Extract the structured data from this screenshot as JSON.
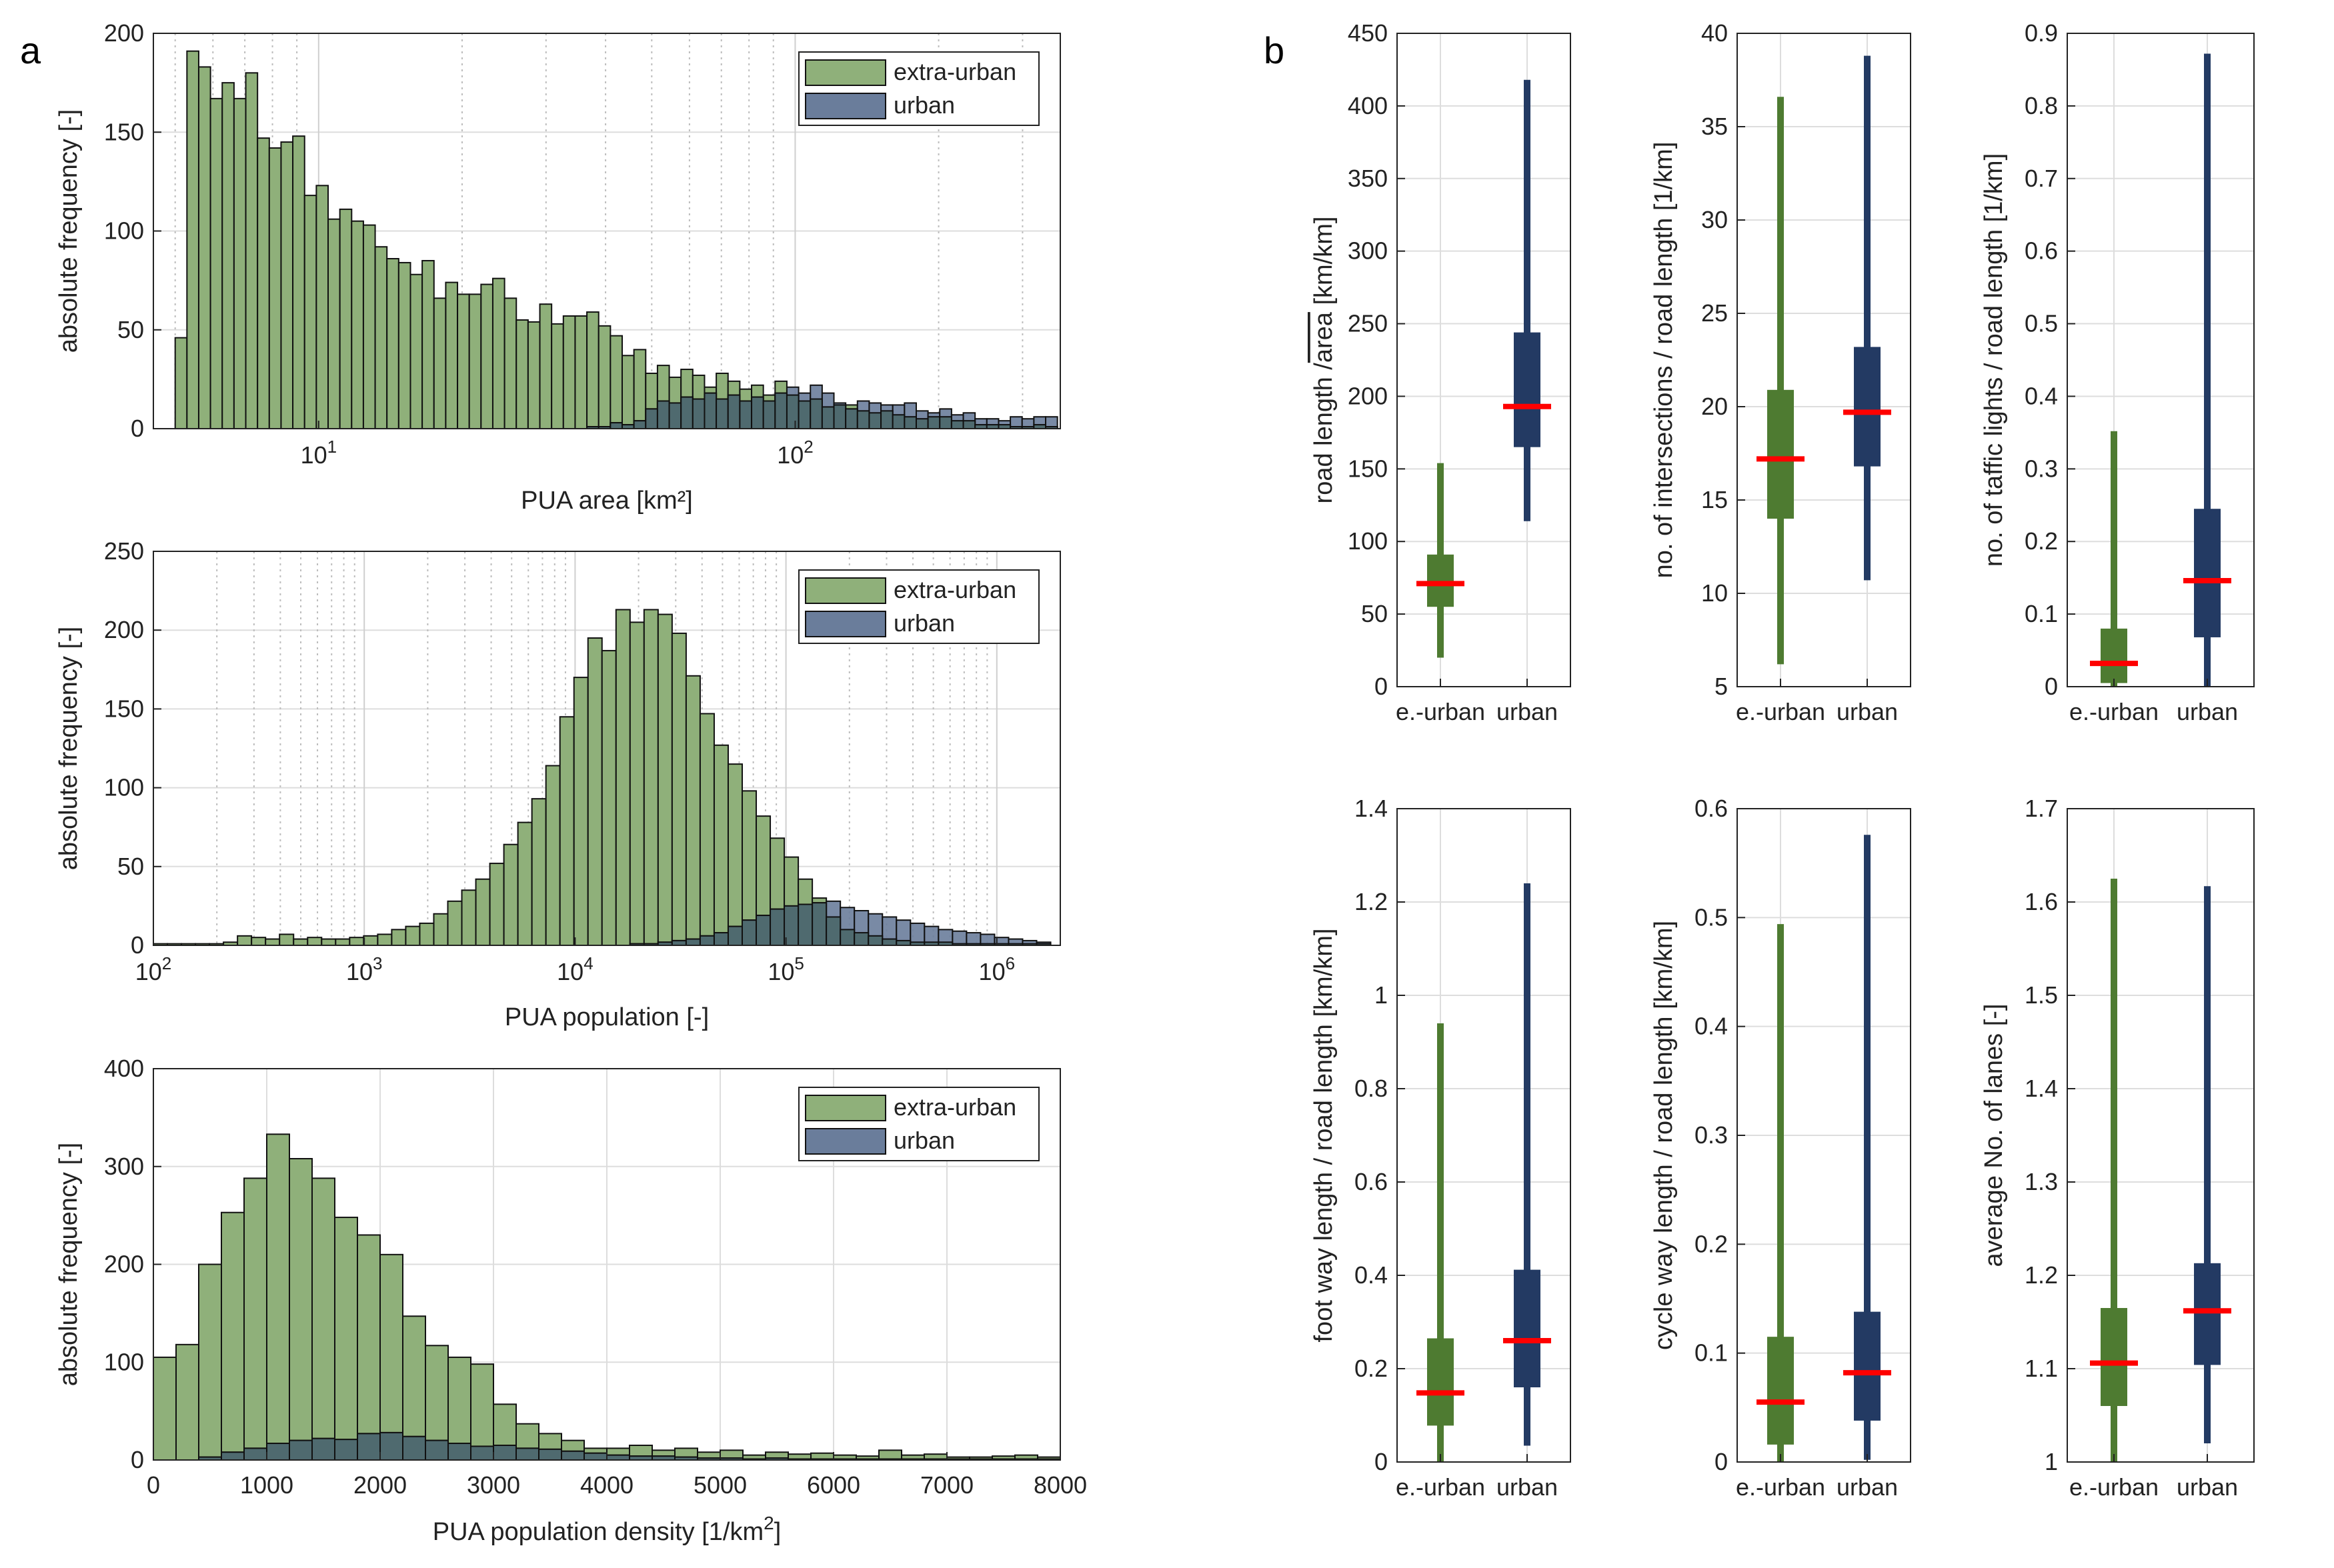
{
  "panel_labels": {
    "a": "a",
    "b": "b"
  },
  "colors": {
    "extra_urban": "#8fb07a",
    "urban": "#6a7d9b",
    "overlap": "#4f6a6f",
    "box_extra": "#4e7b31",
    "box_urban": "#233a63",
    "median": "#ff0000"
  },
  "chart_data": [
    {
      "id": "hist-area",
      "type": "bar",
      "xscale": "log",
      "xlim": [
        4.5,
        360
      ],
      "ylim": [
        0,
        200
      ],
      "xlabel": "PUA area [km²]",
      "ylabel": "absolute frequency [-]",
      "xticks": [
        {
          "v": 10,
          "base": "10",
          "exp": "1"
        },
        {
          "v": 100,
          "base": "10",
          "exp": "2"
        }
      ],
      "yticks": [
        0,
        50,
        100,
        150,
        200
      ],
      "legend": {
        "position": "top-right",
        "entries": [
          "extra-urban",
          "urban"
        ]
      },
      "bin_range": [
        5,
        355
      ],
      "series": [
        {
          "name": "extra-urban",
          "values": [
            46,
            191,
            183,
            167,
            175,
            167,
            180,
            147,
            142,
            145,
            148,
            118,
            123,
            106,
            111,
            105,
            103,
            92,
            86,
            84,
            78,
            85,
            66,
            74,
            68,
            68,
            73,
            76,
            66,
            55,
            54,
            63,
            53,
            57,
            57,
            59,
            52,
            47,
            37,
            40,
            28,
            32,
            26,
            30,
            27,
            21,
            28,
            24,
            20,
            22,
            17,
            24,
            17,
            14,
            15,
            11,
            12,
            12,
            9,
            8,
            9,
            7,
            6,
            5,
            6,
            6,
            4,
            4,
            2,
            2,
            2,
            1,
            1,
            2,
            1
          ]
        },
        {
          "name": "urban",
          "values": [
            0,
            0,
            0,
            0,
            0,
            0,
            0,
            0,
            0,
            0,
            0,
            0,
            0,
            0,
            0,
            0,
            0,
            0,
            0,
            0,
            0,
            0,
            0,
            0,
            0,
            0,
            0,
            0,
            0,
            0,
            0,
            0,
            0,
            0,
            0,
            1,
            1,
            3,
            2,
            4,
            10,
            14,
            13,
            16,
            15,
            18,
            15,
            17,
            14,
            16,
            14,
            18,
            21,
            18,
            22,
            18,
            13,
            10,
            14,
            13,
            12,
            12,
            13,
            9,
            8,
            10,
            7,
            8,
            5,
            5,
            4,
            6,
            5,
            6,
            6
          ]
        }
      ]
    },
    {
      "id": "hist-pop",
      "type": "bar",
      "xscale": "log",
      "xlim": [
        100,
        2000000
      ],
      "ylim": [
        0,
        250
      ],
      "xlabel": "PUA population [-]",
      "ylabel": "absolute frequency [-]",
      "xticks": [
        {
          "v": 100,
          "base": "10",
          "exp": "2"
        },
        {
          "v": 1000,
          "base": "10",
          "exp": "3"
        },
        {
          "v": 10000,
          "base": "10",
          "exp": "4"
        },
        {
          "v": 100000,
          "base": "10",
          "exp": "5"
        },
        {
          "v": 1000000,
          "base": "10",
          "exp": "6"
        }
      ],
      "yticks": [
        0,
        50,
        100,
        150,
        200,
        250
      ],
      "legend": {
        "position": "top-right",
        "entries": [
          "extra-urban",
          "urban"
        ]
      },
      "bin_range": [
        100,
        1800000
      ],
      "series": [
        {
          "name": "extra-urban",
          "values": [
            1,
            1,
            1,
            1,
            1,
            2,
            6,
            5,
            4,
            7,
            4,
            5,
            4,
            4,
            5,
            6,
            7,
            10,
            12,
            14,
            20,
            28,
            35,
            42,
            52,
            64,
            78,
            93,
            114,
            145,
            170,
            195,
            187,
            213,
            205,
            213,
            210,
            198,
            171,
            147,
            127,
            115,
            98,
            82,
            68,
            56,
            42,
            30,
            18,
            10,
            8,
            6,
            4,
            3,
            2,
            2,
            2,
            1,
            1,
            1,
            1,
            1,
            1,
            1
          ]
        },
        {
          "name": "urban",
          "values": [
            0,
            0,
            0,
            0,
            0,
            0,
            0,
            0,
            0,
            0,
            0,
            0,
            0,
            0,
            0,
            0,
            0,
            0,
            0,
            0,
            0,
            0,
            0,
            0,
            0,
            0,
            0,
            0,
            0,
            0,
            0,
            0,
            0,
            0,
            1,
            1,
            2,
            3,
            4,
            6,
            8,
            12,
            16,
            19,
            23,
            25,
            26,
            27,
            28,
            24,
            22,
            20,
            18,
            16,
            14,
            12,
            10,
            9,
            8,
            7,
            5,
            4,
            3,
            2
          ]
        }
      ]
    },
    {
      "id": "hist-dens",
      "type": "bar",
      "xscale": "linear",
      "xlim": [
        0,
        8000
      ],
      "ylim": [
        0,
        400
      ],
      "xlabel": "PUA population density [1/km",
      "xlabel_sup": "2",
      "xlabel_end": "]",
      "ylabel": "absolute frequency [-]",
      "xticks": [
        {
          "v": 0,
          "t": "0"
        },
        {
          "v": 1000,
          "t": "1000"
        },
        {
          "v": 2000,
          "t": "2000"
        },
        {
          "v": 3000,
          "t": "3000"
        },
        {
          "v": 4000,
          "t": "4000"
        },
        {
          "v": 5000,
          "t": "5000"
        },
        {
          "v": 6000,
          "t": "6000"
        },
        {
          "v": 7000,
          "t": "7000"
        },
        {
          "v": 8000,
          "t": "8000"
        }
      ],
      "yticks": [
        0,
        100,
        200,
        300,
        400
      ],
      "legend": {
        "position": "top-right",
        "entries": [
          "extra-urban",
          "urban"
        ]
      },
      "bin_range": [
        0,
        8000
      ],
      "series": [
        {
          "name": "extra-urban",
          "values": [
            105,
            118,
            200,
            253,
            288,
            333,
            308,
            288,
            248,
            230,
            210,
            147,
            117,
            105,
            98,
            57,
            37,
            27,
            20,
            12,
            12,
            15,
            10,
            12,
            8,
            10,
            5,
            8,
            6,
            7,
            5,
            4,
            10,
            5,
            6,
            3,
            3,
            4,
            5,
            3
          ]
        },
        {
          "name": "urban",
          "values": [
            0,
            0,
            3,
            8,
            12,
            17,
            20,
            22,
            21,
            27,
            28,
            24,
            20,
            17,
            14,
            15,
            12,
            11,
            9,
            7,
            5,
            4,
            4,
            3,
            2,
            2,
            1,
            2,
            1,
            1,
            1,
            1,
            1,
            1,
            1,
            1,
            1,
            1,
            1,
            1
          ]
        }
      ]
    },
    {
      "id": "box-road",
      "type": "box",
      "ylim": [
        0,
        450
      ],
      "yticks": [
        0,
        50,
        100,
        150,
        200,
        250,
        300,
        350,
        400,
        450
      ],
      "ylabel_pre": "road length /",
      "ylabel_root": "area",
      "ylabel_post": " [km/km]",
      "categories": [
        "e.-urban",
        "urban"
      ],
      "boxes": [
        {
          "whislo": 20,
          "q1": 55,
          "med": 71,
          "q3": 91,
          "whishi": 154
        },
        {
          "whislo": 114,
          "q1": 165,
          "med": 193,
          "q3": 244,
          "whishi": 418
        }
      ]
    },
    {
      "id": "box-int",
      "type": "box",
      "ylim": [
        5,
        40
      ],
      "yticks": [
        5,
        10,
        15,
        20,
        25,
        30,
        35,
        40
      ],
      "ylabel": "no. of intersections / road length [1/km]",
      "categories": [
        "e.-urban",
        "urban"
      ],
      "boxes": [
        {
          "whislo": 6.2,
          "q1": 14,
          "med": 17.2,
          "q3": 20.9,
          "whishi": 36.6
        },
        {
          "whislo": 10.7,
          "q1": 16.8,
          "med": 19.7,
          "q3": 23.2,
          "whishi": 38.8
        }
      ]
    },
    {
      "id": "box-tl",
      "type": "box",
      "ylim": [
        0,
        0.9
      ],
      "yticks": [
        0,
        0.1,
        0.2,
        0.3,
        0.4,
        0.5,
        0.6,
        0.7,
        0.8,
        0.9
      ],
      "ylabel": "no. of taffic lights / road length [1/km]",
      "categories": [
        "e.-urban",
        "urban"
      ],
      "boxes": [
        {
          "whislo": 0,
          "q1": 0.005,
          "med": 0.032,
          "q3": 0.08,
          "whishi": 0.352
        },
        {
          "whislo": 0,
          "q1": 0.068,
          "med": 0.146,
          "q3": 0.245,
          "whishi": 0.872
        }
      ]
    },
    {
      "id": "box-foot",
      "type": "box",
      "ylim": [
        0,
        1.4
      ],
      "yticks": [
        0,
        0.2,
        0.4,
        0.6,
        0.8,
        1,
        1.2,
        1.4
      ],
      "ylabel": "foot way length / road length [km/km]",
      "categories": [
        "e.-urban",
        "urban"
      ],
      "boxes": [
        {
          "whislo": 0,
          "q1": 0.078,
          "med": 0.148,
          "q3": 0.265,
          "whishi": 0.94
        },
        {
          "whislo": 0.035,
          "q1": 0.16,
          "med": 0.26,
          "q3": 0.412,
          "whishi": 1.24
        }
      ]
    },
    {
      "id": "box-cycle",
      "type": "box",
      "ylim": [
        0,
        0.6
      ],
      "yticks": [
        0,
        0.1,
        0.2,
        0.3,
        0.4,
        0.5,
        0.6
      ],
      "ylabel": "cycle way length / road length [km/km]",
      "categories": [
        "e.-urban",
        "urban"
      ],
      "boxes": [
        {
          "whislo": 0,
          "q1": 0.016,
          "med": 0.055,
          "q3": 0.115,
          "whishi": 0.494
        },
        {
          "whislo": 0.002,
          "q1": 0.038,
          "med": 0.082,
          "q3": 0.138,
          "whishi": 0.576
        }
      ]
    },
    {
      "id": "box-lanes",
      "type": "box",
      "ylim": [
        1,
        1.7
      ],
      "yticks": [
        1,
        1.1,
        1.2,
        1.3,
        1.4,
        1.5,
        1.6,
        1.7
      ],
      "ylabel": "average No. of lanes [-]",
      "categories": [
        "e.-urban",
        "urban"
      ],
      "boxes": [
        {
          "whislo": 1,
          "q1": 1.06,
          "med": 1.106,
          "q3": 1.165,
          "whishi": 1.625
        },
        {
          "whislo": 1.02,
          "q1": 1.104,
          "med": 1.162,
          "q3": 1.213,
          "whishi": 1.617
        }
      ]
    }
  ]
}
